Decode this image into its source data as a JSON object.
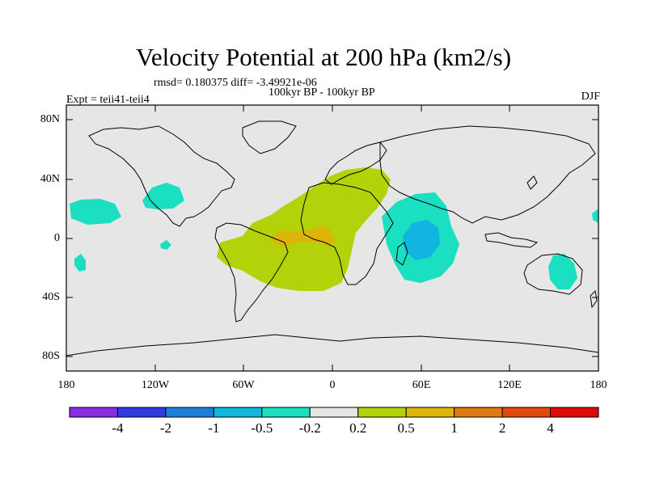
{
  "title": "Velocity Potential at 200 hPa (km2/s)",
  "stats_text": "rmsd= 0.180375 diff= -3.49921e-06",
  "period_text": "100kyr BP - 100kyr BP",
  "experiment_text": "Expt = teii41-teii4",
  "season": "DJF",
  "map": {
    "projection": "cylindrical-equidistant",
    "background_color": "#e6e6e6",
    "lon_range": [
      -180,
      180
    ],
    "lat_range": [
      -90,
      90
    ],
    "y_tick_labels": [
      "80N",
      "40N",
      "0",
      "40S",
      "80S"
    ],
    "x_tick_labels": [
      "180",
      "120W",
      "60W",
      "0",
      "60E",
      "120E",
      "180"
    ]
  },
  "colorbar": {
    "colors": [
      "#8a2be2",
      "#2f3ae0",
      "#1a7fd8",
      "#10b6e0",
      "#1adfc0",
      "#e6e6e6",
      "#b4d20a",
      "#dcb40a",
      "#e07814",
      "#e04a0a",
      "#e00a0a"
    ],
    "labels": [
      "-4",
      "-2",
      "-1",
      "-0.5",
      "-0.2",
      "0.2",
      "0.5",
      "1",
      "2",
      "4"
    ]
  },
  "field_regions": [
    {
      "name": "atlantic-africa-positive",
      "level": "0.2 to 0.5",
      "color": "#b4d20a"
    },
    {
      "name": "equatorial-atlantic-maximum",
      "level": "0.5 to 1",
      "color": "#dcb40a"
    },
    {
      "name": "indian-ocean-negative",
      "level": "-0.5 to -0.2",
      "color": "#1adfc0"
    },
    {
      "name": "indian-ocean-minimum",
      "level": "-1 to -0.5",
      "color": "#10b6e0"
    },
    {
      "name": "north-pacific-negative",
      "level": "-0.5 to -0.2",
      "color": "#1adfc0"
    },
    {
      "name": "australia-negative",
      "level": "-0.5 to -0.2",
      "color": "#1adfc0"
    }
  ]
}
